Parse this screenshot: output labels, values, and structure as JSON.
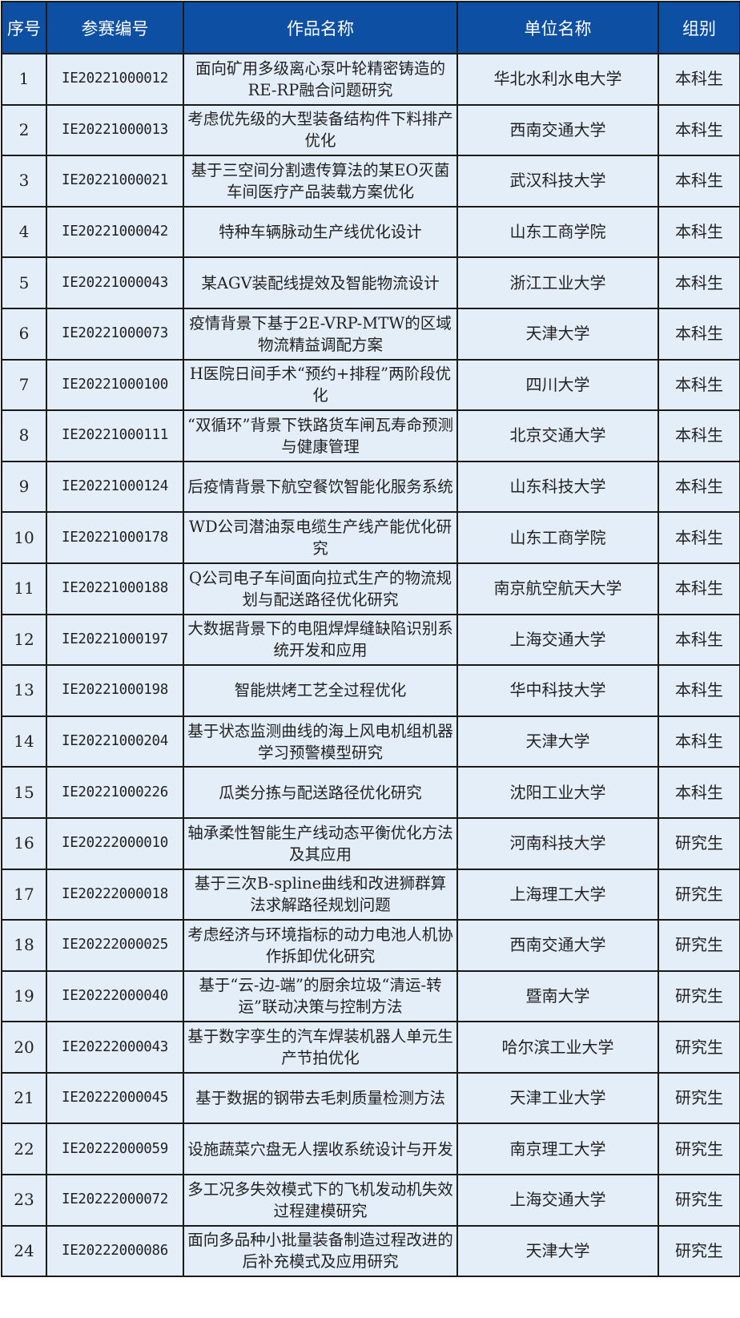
{
  "headers": [
    "序号",
    "参赛编号",
    "作品名称",
    "单位名称",
    "组别"
  ],
  "rows": [
    {
      "no": "1",
      "code": "IE20221000012",
      "title": "面向矿用多级离心泵叶轮精密铸造的RE-RP融合问题研究",
      "unit": "华北水利水电大学",
      "group": "本科生"
    },
    {
      "no": "2",
      "code": "IE20221000013",
      "title": "考虑优先级的大型装备结构件下料排产优化",
      "unit": "西南交通大学",
      "group": "本科生"
    },
    {
      "no": "3",
      "code": "IE20221000021",
      "title": "基于三空间分割遗传算法的某EO灭菌车间医疗产品装载方案优化",
      "unit": "武汉科技大学",
      "group": "本科生"
    },
    {
      "no": "4",
      "code": "IE20221000042",
      "title": "特种车辆脉动生产线优化设计",
      "unit": "山东工商学院",
      "group": "本科生"
    },
    {
      "no": "5",
      "code": "IE20221000043",
      "title": "某AGV装配线提效及智能物流设计",
      "unit": "浙江工业大学",
      "group": "本科生"
    },
    {
      "no": "6",
      "code": "IE20221000073",
      "title": "疫情背景下基于2E-VRP-MTW的区域物流精益调配方案",
      "unit": "天津大学",
      "group": "本科生"
    },
    {
      "no": "7",
      "code": "IE20221000100",
      "title": "H医院日间手术“预约+排程”两阶段优化",
      "unit": "四川大学",
      "group": "本科生"
    },
    {
      "no": "8",
      "code": "IE20221000111",
      "title": "“双循环”背景下铁路货车闸瓦寿命预测与健康管理",
      "unit": "北京交通大学",
      "group": "本科生"
    },
    {
      "no": "9",
      "code": "IE20221000124",
      "title": "后疫情背景下航空餐饮智能化服务系统",
      "unit": "山东科技大学",
      "group": "本科生"
    },
    {
      "no": "10",
      "code": "IE20221000178",
      "title": "WD公司潜油泵电缆生产线产能优化研究",
      "unit": "山东工商学院",
      "group": "本科生"
    },
    {
      "no": "11",
      "code": "IE20221000188",
      "title": "Q公司电子车间面向拉式生产的物流规划与配送路径优化研究",
      "unit": "南京航空航天大学",
      "group": "本科生"
    },
    {
      "no": "12",
      "code": "IE20221000197",
      "title": "大数据背景下的电阻焊焊缝缺陷识别系统开发和应用",
      "unit": "上海交通大学",
      "group": "本科生"
    },
    {
      "no": "13",
      "code": "IE20221000198",
      "title": "智能烘烤工艺全过程优化",
      "unit": "华中科技大学",
      "group": "本科生"
    },
    {
      "no": "14",
      "code": "IE20221000204",
      "title": "基于状态监测曲线的海上风电机组机器学习预警模型研究",
      "unit": "天津大学",
      "group": "本科生"
    },
    {
      "no": "15",
      "code": "IE20221000226",
      "title": "瓜类分拣与配送路径优化研究",
      "unit": "沈阳工业大学",
      "group": "本科生"
    },
    {
      "no": "16",
      "code": "IE20222000010",
      "title": "轴承柔性智能生产线动态平衡优化方法及其应用",
      "unit": "河南科技大学",
      "group": "研究生"
    },
    {
      "no": "17",
      "code": "IE20222000018",
      "title": "基于三次B-spline曲线和改进狮群算法求解路径规划问题",
      "unit": "上海理工大学",
      "group": "研究生"
    },
    {
      "no": "18",
      "code": "IE20222000025",
      "title": "考虑经济与环境指标的动力电池人机协作拆卸优化研究",
      "unit": "西南交通大学",
      "group": "研究生"
    },
    {
      "no": "19",
      "code": "IE20222000040",
      "title": "基于“云-边-端”的厨余垃圾“清运-转运”联动决策与控制方法",
      "unit": "暨南大学",
      "group": "研究生"
    },
    {
      "no": "20",
      "code": "IE20222000043",
      "title": "基于数字孪生的汽车焊装机器人单元生产节拍优化",
      "unit": "哈尔滨工业大学",
      "group": "研究生"
    },
    {
      "no": "21",
      "code": "IE20222000045",
      "title": "基于数据的钢带去毛刺质量检测方法",
      "unit": "天津工业大学",
      "group": "研究生"
    },
    {
      "no": "22",
      "code": "IE20222000059",
      "title": "设施蔬菜穴盘无人摆收系统设计与开发",
      "unit": "南京理工大学",
      "group": "研究生"
    },
    {
      "no": "23",
      "code": "IE20222000072",
      "title": "多工况多失效模式下的飞机发动机失效过程建模研究",
      "unit": "上海交通大学",
      "group": "研究生"
    },
    {
      "no": "24",
      "code": "IE20222000086",
      "title": "面向多品种小批量装备制造过程改进的后补充模式及应用研究",
      "unit": "天津大学",
      "group": "研究生"
    }
  ]
}
